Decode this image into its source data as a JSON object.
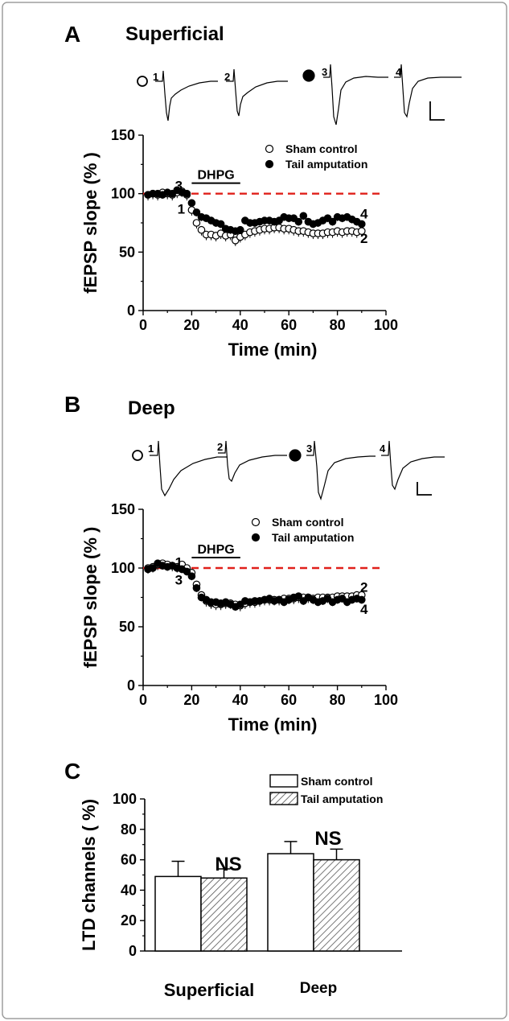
{
  "frame": {
    "border_color": "#9e9e9e"
  },
  "colors": {
    "baseline": "#e0201b",
    "filled": "#000000",
    "open": "#ffffff",
    "bar_hatch": "#555555"
  },
  "panels": [
    {
      "letter": "A",
      "title": "Superficial",
      "trace_labels": [
        "1",
        "2",
        "3",
        "4"
      ],
      "markers": [
        "open-circle",
        "filled-circle"
      ],
      "drug_label": "DHPG",
      "point_labels": [
        "3",
        "1",
        "4",
        "2"
      ]
    },
    {
      "letter": "B",
      "title": "Deep",
      "trace_labels": [
        "1",
        "2",
        "3",
        "4"
      ],
      "markers": [
        "open-circle",
        "filled-circle"
      ],
      "drug_label": "DHPG",
      "point_labels": [
        "1",
        "3",
        "2",
        "4"
      ]
    },
    {
      "letter": "C",
      "annotations": [
        "NS",
        "NS"
      ]
    }
  ],
  "chart_data": [
    {
      "type": "scatter",
      "panel": "A",
      "xlabel": "Time (min)",
      "ylabel": "fEPSP slope (% )",
      "xlim": [
        0,
        100
      ],
      "ylim": [
        0,
        150
      ],
      "xticks": [
        "0",
        "20",
        "40",
        "60",
        "80",
        "100"
      ],
      "yticks": [
        "0",
        "50",
        "100",
        "150"
      ],
      "baseline": 100,
      "drug_bar": {
        "label": "DHPG",
        "x": [
          20,
          40
        ]
      },
      "series": [
        {
          "name": "Sham control",
          "marker": "open",
          "x": [
            2,
            4,
            6,
            8,
            10,
            12,
            14,
            16,
            18,
            20,
            22,
            24,
            26,
            28,
            30,
            32,
            34,
            36,
            38,
            40,
            42,
            44,
            46,
            48,
            50,
            52,
            54,
            56,
            58,
            60,
            62,
            64,
            66,
            68,
            70,
            72,
            74,
            76,
            78,
            80,
            82,
            84,
            86,
            88,
            90
          ],
          "y": [
            99,
            100,
            99,
            101,
            100,
            99,
            101,
            102,
            99,
            86,
            75,
            69,
            65,
            65,
            64,
            66,
            64,
            65,
            60,
            63,
            65,
            67,
            68,
            69,
            70,
            70,
            71,
            71,
            70,
            70,
            69,
            68,
            68,
            67,
            66,
            66,
            66,
            67,
            67,
            68,
            67,
            68,
            68,
            67,
            68
          ]
        },
        {
          "name": "Tail amputation",
          "marker": "filled",
          "x": [
            2,
            4,
            6,
            8,
            10,
            12,
            14,
            16,
            18,
            20,
            22,
            24,
            26,
            28,
            30,
            32,
            34,
            36,
            38,
            40,
            42,
            44,
            46,
            48,
            50,
            52,
            54,
            56,
            58,
            60,
            62,
            64,
            66,
            68,
            70,
            72,
            74,
            76,
            78,
            80,
            82,
            84,
            86,
            88,
            90
          ],
          "y": [
            99,
            100,
            100,
            99,
            101,
            100,
            103,
            101,
            100,
            92,
            84,
            80,
            79,
            77,
            75,
            74,
            70,
            69,
            68,
            69,
            77,
            75,
            75,
            76,
            77,
            77,
            76,
            77,
            80,
            79,
            79,
            76,
            81,
            76,
            74,
            75,
            77,
            79,
            76,
            80,
            79,
            80,
            78,
            76,
            74
          ]
        }
      ],
      "point_labels": [
        {
          "text": "3",
          "x": 16,
          "y": 107
        },
        {
          "text": "1",
          "x": 17,
          "y": 87
        },
        {
          "text": "4",
          "x": 89,
          "y": 83
        },
        {
          "text": "2",
          "x": 89,
          "y": 62
        }
      ]
    },
    {
      "type": "scatter",
      "panel": "B",
      "xlabel": "Time (min)",
      "ylabel": "fEPSP slope (% )",
      "xlim": [
        0,
        100
      ],
      "ylim": [
        0,
        150
      ],
      "xticks": [
        "0",
        "20",
        "40",
        "60",
        "80",
        "100"
      ],
      "yticks": [
        "0",
        "50",
        "100",
        "150"
      ],
      "baseline": 100,
      "drug_bar": {
        "label": "DHPG",
        "x": [
          20,
          40
        ]
      },
      "series": [
        {
          "name": "Sham control",
          "marker": "open",
          "x": [
            2,
            4,
            6,
            8,
            10,
            12,
            14,
            16,
            18,
            20,
            22,
            24,
            26,
            28,
            30,
            32,
            34,
            36,
            38,
            40,
            42,
            44,
            46,
            48,
            50,
            52,
            54,
            56,
            58,
            60,
            62,
            64,
            66,
            68,
            70,
            72,
            74,
            76,
            78,
            80,
            82,
            84,
            86,
            88,
            90
          ],
          "y": [
            100,
            101,
            103,
            104,
            103,
            102,
            101,
            103,
            100,
            96,
            86,
            77,
            72,
            70,
            69,
            69,
            70,
            70,
            69,
            68,
            70,
            71,
            71,
            72,
            73,
            73,
            73,
            73,
            74,
            74,
            74,
            75,
            75,
            75,
            74,
            75,
            75,
            75,
            75,
            76,
            76,
            76,
            76,
            77,
            77
          ]
        },
        {
          "name": "Tail amputation",
          "marker": "filled",
          "x": [
            2,
            4,
            6,
            8,
            10,
            12,
            14,
            16,
            18,
            20,
            22,
            24,
            26,
            28,
            30,
            32,
            34,
            36,
            38,
            40,
            42,
            44,
            46,
            48,
            50,
            52,
            54,
            56,
            58,
            60,
            62,
            64,
            66,
            68,
            70,
            72,
            74,
            76,
            78,
            80,
            82,
            84,
            86,
            88,
            90
          ],
          "y": [
            99,
            100,
            104,
            102,
            101,
            102,
            100,
            99,
            97,
            93,
            83,
            75,
            73,
            71,
            71,
            70,
            71,
            69,
            67,
            69,
            72,
            71,
            72,
            72,
            73,
            74,
            72,
            73,
            71,
            73,
            75,
            76,
            72,
            75,
            73,
            71,
            72,
            74,
            71,
            73,
            74,
            71,
            73,
            74,
            73
          ]
        }
      ],
      "point_labels": [
        {
          "text": "1",
          "x": 16,
          "y": 105
        },
        {
          "text": "3",
          "x": 16,
          "y": 90
        },
        {
          "text": "2",
          "x": 89,
          "y": 84
        },
        {
          "text": "4",
          "x": 89,
          "y": 65
        }
      ]
    },
    {
      "type": "bar",
      "panel": "C",
      "ylabel": "LTD channels ( %)",
      "ylim": [
        0,
        100
      ],
      "yticks": [
        "0",
        "20",
        "40",
        "60",
        "80",
        "100"
      ],
      "categories": [
        "Superficial",
        "Deep"
      ],
      "series": [
        {
          "name": "Sham control",
          "pattern": "solid-white",
          "values": [
            49,
            64
          ],
          "errors": [
            10,
            8
          ]
        },
        {
          "name": "Tail amputation",
          "pattern": "hatched",
          "values": [
            48,
            60
          ],
          "errors": [
            6,
            7
          ]
        }
      ],
      "annotations": [
        "NS",
        "NS"
      ]
    }
  ]
}
